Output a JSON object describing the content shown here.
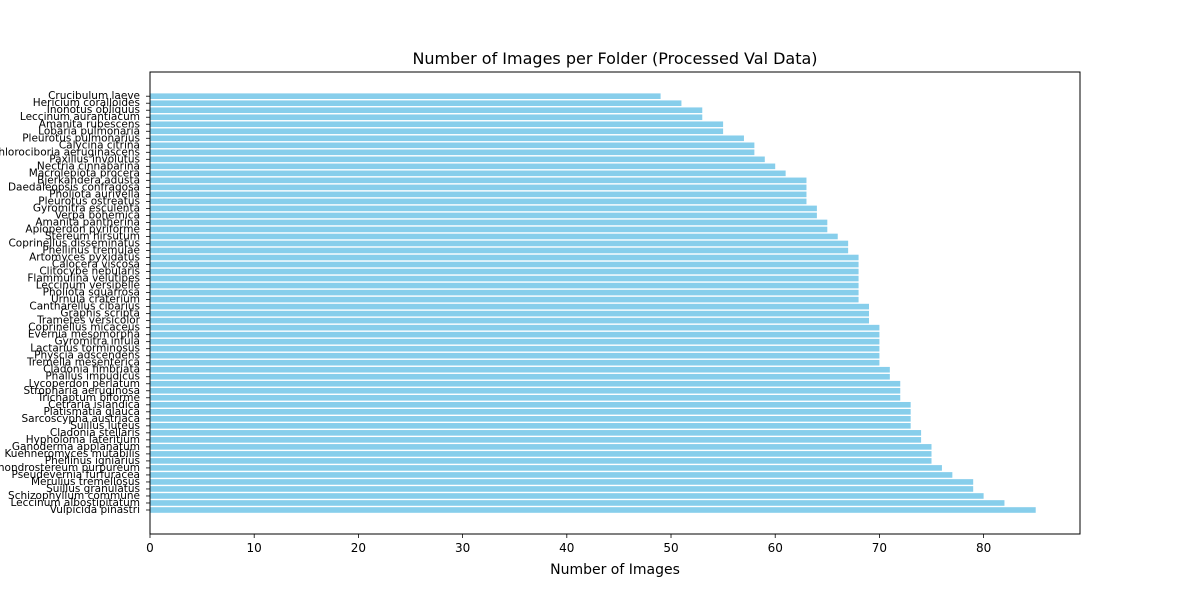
{
  "chart_data": {
    "type": "bar",
    "orientation": "horizontal",
    "title": "Number of Images per Folder (Processed Val Data)",
    "xlabel": "Number of Images",
    "ylabel": "",
    "xlim": [
      0,
      89.25
    ],
    "xticks": [
      0,
      10,
      20,
      30,
      40,
      50,
      60,
      70,
      80
    ],
    "grid": false,
    "bar_color": "#87ceeb",
    "categories": [
      "Crucibulum laeve",
      "Hericium coralloides",
      "Inonotus obliquus",
      "Leccinum aurantiacum",
      "Amanita rubescens",
      "Lobaria pulmonaria",
      "Pleurotus pulmonarius",
      "Calycina citrina",
      "Chlorociboria aeruginascens",
      "Paxillus involutus",
      "Nectria cinnabarina",
      "Macrolepiota procera",
      "Bjerkandera adusta",
      "Daedaleopsis confragosa",
      "Pholiota aurivella",
      "Pleurotus ostreatus",
      "Gyromitra esculenta",
      "Verpa bohemica",
      "Amanita pantherina",
      "Apioperdon pyriforme",
      "Stereum hirsutum",
      "Coprinellus disseminatus",
      "Phellinus tremulae",
      "Artomyces pyxidatus",
      "Calocera viscosa",
      "Clitocybe nebularis",
      "Flammulina velutipes",
      "Leccinum versipelle",
      "Pholiota squarrosa",
      "Urnula craterium",
      "Cantharellus cibarius",
      "Graphis scripta",
      "Trametes versicolor",
      "Coprinellus micaceus",
      "Evernia mesomorpha",
      "Gyromitra infula",
      "Lactarius torminosus",
      "Physcia adscendens",
      "Tremella mesenterica",
      "Cladonia fimbriata",
      "Phallus impudicus",
      "Lycoperdon perlatum",
      "Stropharia aeruginosa",
      "Trichaptum biforme",
      "Cetraria islandica",
      "Platismatia glauca",
      "Sarcoscypha austriaca",
      "Suillus luteus",
      "Cladonia stellaris",
      "Hypholoma lateritium",
      "Ganoderma applanatum",
      "Kuehneromyces mutabilis",
      "Phellinus igniarius",
      "Chondrostereum purpureum",
      "Pseudevernia furfuracea",
      "Merulius tremellosus",
      "Suillus granulatus",
      "Schizophyllum commune",
      "Leccinum albostipitatum",
      "Vulpicida pinastri"
    ],
    "values": [
      49,
      51,
      53,
      53,
      55,
      55,
      57,
      58,
      58,
      59,
      60,
      61,
      63,
      63,
      63,
      63,
      64,
      64,
      65,
      65,
      66,
      67,
      67,
      68,
      68,
      68,
      68,
      68,
      68,
      68,
      69,
      69,
      69,
      70,
      70,
      70,
      70,
      70,
      70,
      71,
      71,
      72,
      72,
      72,
      73,
      73,
      73,
      73,
      74,
      74,
      75,
      75,
      75,
      76,
      77,
      79,
      79,
      80,
      82,
      85
    ]
  }
}
